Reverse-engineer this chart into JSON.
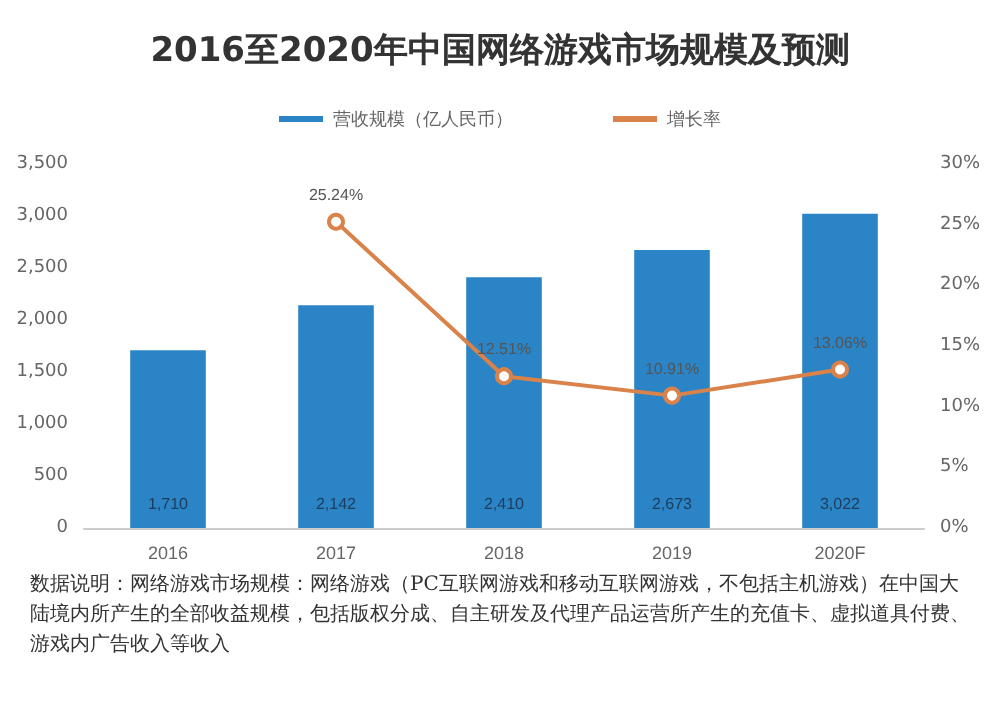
{
  "chart_data": {
    "type": "bar",
    "title": "2016至2020年中国网络游戏市场规模及预测",
    "categories": [
      "2016",
      "2017",
      "2018",
      "2019",
      "2020F"
    ],
    "series": [
      {
        "name": "营收规模（亿人民币）",
        "color": "#2b84c6",
        "values": [
          1710,
          2142,
          2410,
          2673,
          3022
        ],
        "value_labels": [
          "1,710",
          "2,142",
          "2,410",
          "2,673",
          "3,022"
        ]
      },
      {
        "name": "增长率",
        "type": "line",
        "axis": "y2",
        "color": "#d9824a",
        "values": [
          null,
          25.24,
          12.51,
          10.91,
          13.06
        ],
        "value_labels": [
          null,
          "25.24%",
          "12.51%",
          "10.91%",
          "13.06%"
        ]
      }
    ],
    "ylim": [
      0,
      3500
    ],
    "yticks": [
      0,
      500,
      {
        "value": 1000,
        "label": "1,000"
      },
      {
        "value": 1500,
        "label": "1,500"
      },
      {
        "value": 2000,
        "label": "2,000"
      },
      {
        "value": 2500,
        "label": "2,500"
      },
      {
        "value": 3000,
        "label": "3,000"
      },
      {
        "value": 3500,
        "label": "3,500"
      }
    ],
    "y2lim": [
      0,
      30
    ],
    "y2ticks": [
      {
        "value": 0,
        "label": "0%"
      },
      {
        "value": 5,
        "label": "5%"
      },
      {
        "value": 10,
        "label": "10%"
      },
      {
        "value": 15,
        "label": "15%"
      },
      {
        "value": 20,
        "label": "20%"
      },
      {
        "value": 25,
        "label": "25%"
      },
      {
        "value": 30,
        "label": "30%"
      }
    ],
    "legend": "top",
    "grid": false,
    "marker": "circle",
    "annotations": [
      "数据说明：网络游戏市场规模：网络游戏（PC互联网游戏和移动互联网游戏，不包括主机游戏）在中国大陆境内所产生的全部收益规模，包括版权分成、自主研发及代理产品运营所产生的充值卡、虚拟道具付费、游戏内广告收入等收入"
    ]
  }
}
